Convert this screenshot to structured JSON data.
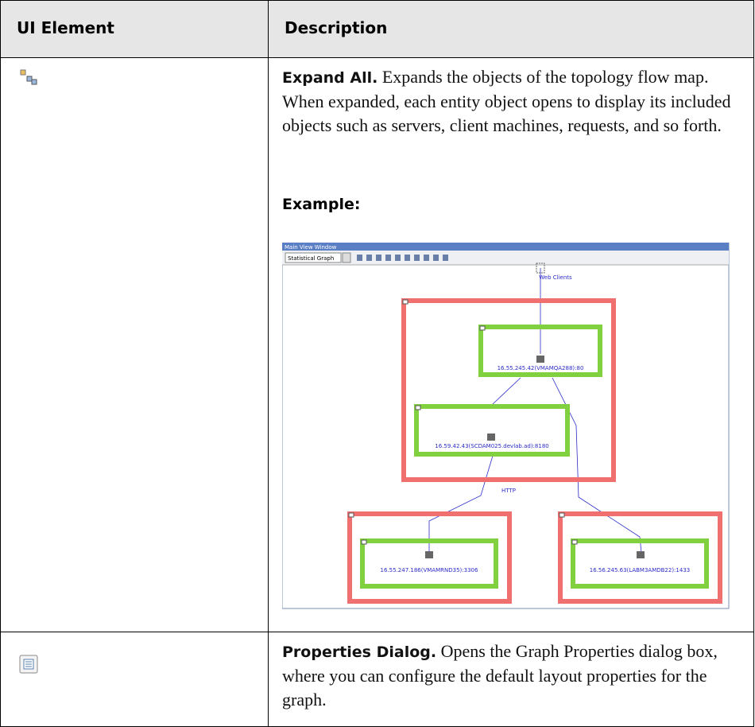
{
  "table": {
    "headers": [
      "UI Element",
      "Description"
    ],
    "rows": [
      {
        "term": "Expand All.",
        "description": "Expands the objects of the topology flow map. When expanded, each entity object opens to display its included objects such as servers, client machines, requests, and so forth.",
        "example_label": "Example:",
        "screenshot": {
          "window_title": "Main View Window",
          "view_selector": "Statistical Graph",
          "nodes": [
            {
              "label": "Web Clients"
            },
            {
              "label": "16.55.245.42(VMAMQA288):80"
            },
            {
              "label": "16.59.42.43(SCDAM025.devlab.ad):8180"
            },
            {
              "label": "16.55.247.186(VMAMRND35):3306"
            },
            {
              "label": "16.56.245.63(LABM3AMDB22):1433"
            }
          ],
          "edge_label": "HTTP"
        }
      },
      {
        "term": "Properties Dialog.",
        "description": "Opens the Graph Properties dialog box, where you can configure the default layout properties for the graph."
      }
    ]
  }
}
